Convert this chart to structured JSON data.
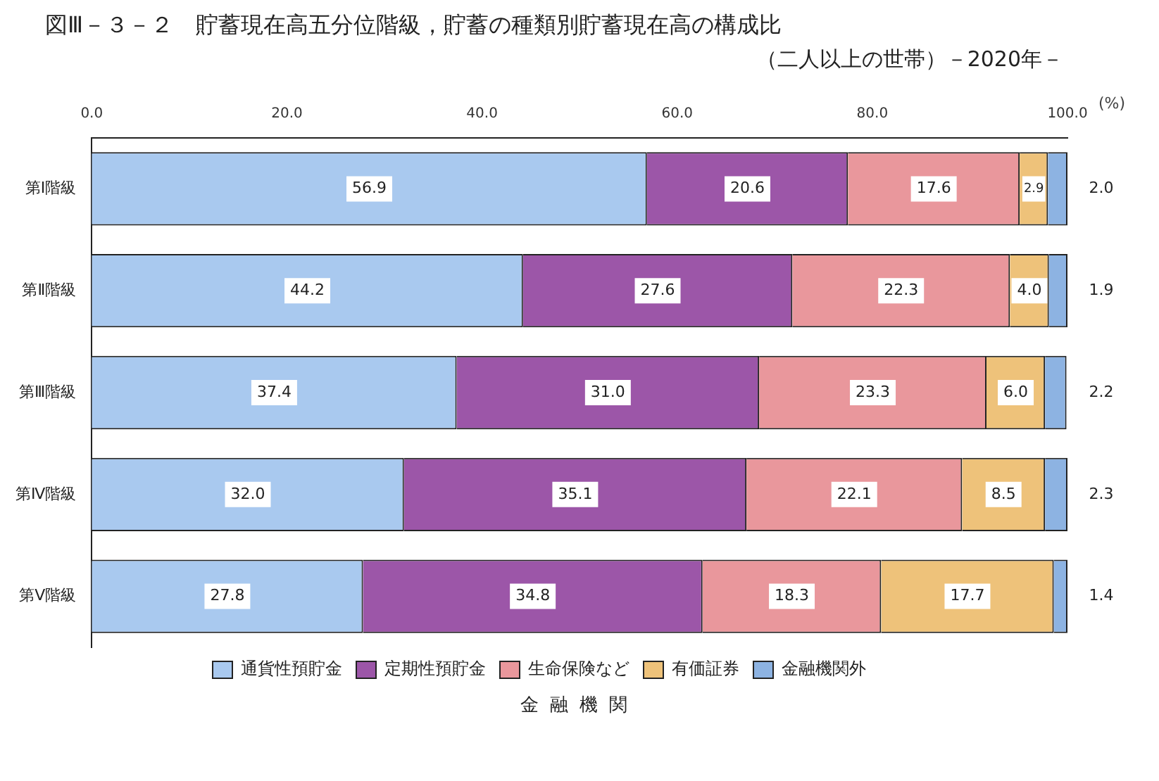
{
  "chart_data": {
    "type": "bar",
    "orientation": "horizontal",
    "stacked": true,
    "title": "図Ⅲ－３－２　貯蓄現在高五分位階級，貯蓄の種類別貯蓄現在高の構成比",
    "subtitle": "（二人以上の世帯）－2020年－",
    "xlabel": "(%)",
    "categories": [
      "第Ⅰ階級",
      "第Ⅱ階級",
      "第Ⅲ階級",
      "第Ⅳ階級",
      "第Ⅴ階級"
    ],
    "series": [
      {
        "name": "通貨性預貯金",
        "color": "#a9c9ef",
        "values": [
          56.9,
          44.2,
          37.4,
          32.0,
          27.8
        ],
        "value_labels": [
          "56.9",
          "44.2",
          "37.4",
          "32.0",
          "27.8"
        ]
      },
      {
        "name": "定期性預貯金",
        "color": "#9c56a8",
        "values": [
          20.6,
          27.6,
          31.0,
          35.1,
          34.8
        ],
        "value_labels": [
          "20.6",
          "27.6",
          "31.0",
          "35.1",
          "34.8"
        ]
      },
      {
        "name": "生命保険など",
        "color": "#e9979c",
        "values": [
          17.6,
          22.3,
          23.3,
          22.1,
          18.3
        ],
        "value_labels": [
          "17.6",
          "22.3",
          "23.3",
          "22.1",
          "18.3"
        ]
      },
      {
        "name": "有価証券",
        "color": "#eec27a",
        "values": [
          2.9,
          4.0,
          6.0,
          8.5,
          17.7
        ],
        "value_labels": [
          "2.9",
          "4.0",
          "6.0",
          "8.5",
          "17.7"
        ]
      },
      {
        "name": "金融機関外",
        "color": "#8db3e2",
        "values": [
          2.0,
          1.9,
          2.2,
          2.3,
          1.4
        ],
        "value_labels": [
          "2.0",
          "1.9",
          "2.2",
          "2.3",
          "1.4"
        ]
      }
    ],
    "xlim": [
      0,
      100
    ],
    "xticks": [
      {
        "value": 0,
        "label": "0.0"
      },
      {
        "value": 20,
        "label": "20.0"
      },
      {
        "value": 40,
        "label": "40.0"
      },
      {
        "value": 60,
        "label": "60.0"
      },
      {
        "value": 80,
        "label": "80.0"
      },
      {
        "value": 100,
        "label": "100.0"
      }
    ],
    "grid": false,
    "legend": "bottom",
    "annotations": [
      "金融機関"
    ]
  }
}
